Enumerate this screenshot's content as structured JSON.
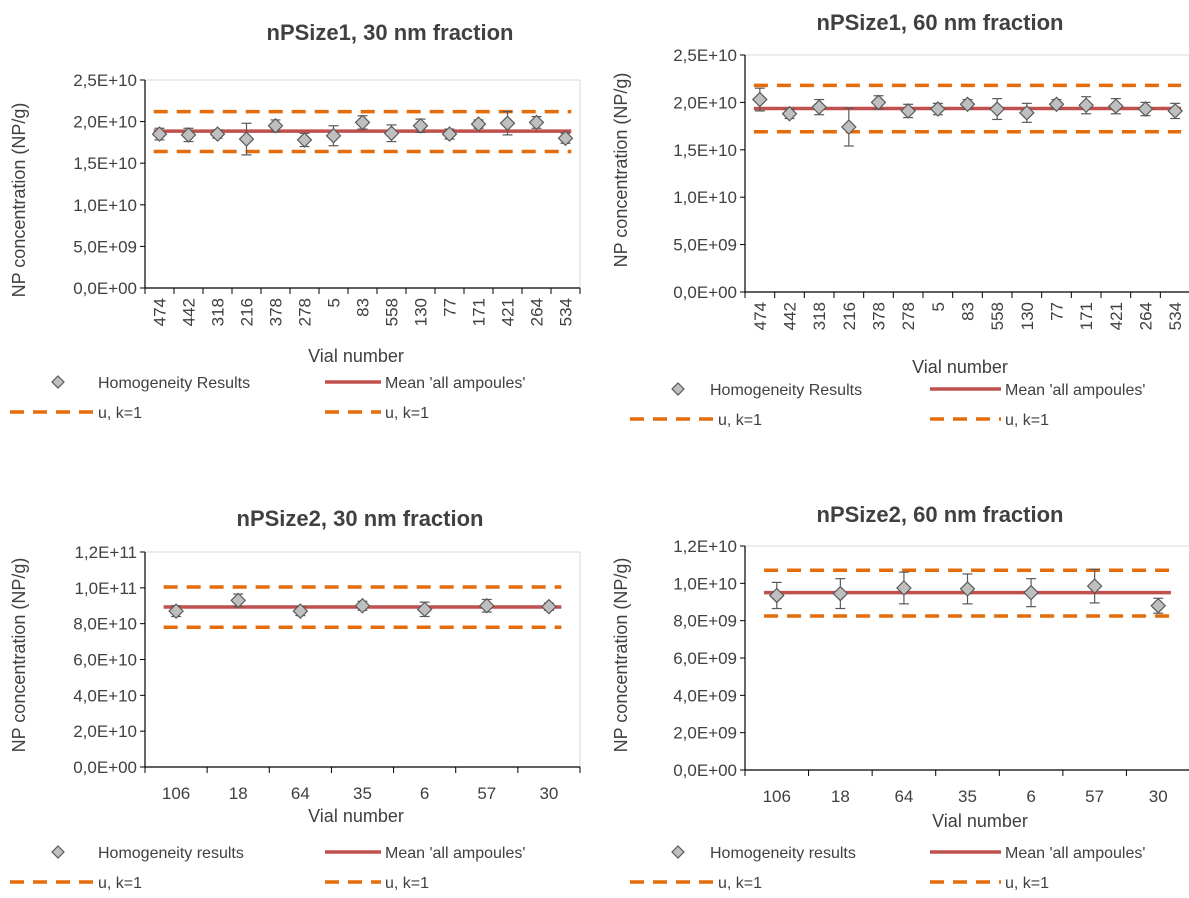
{
  "chart_data": [
    {
      "type": "scatter",
      "title": "nPSize1, 30 nm fraction",
      "xlabel": "Vial number",
      "ylabel": "NP concentration (NP/g)",
      "ylim": [
        0,
        25000000000
      ],
      "y_ticks": [
        "0,0E+00",
        "5,0E+09",
        "1,0E+10",
        "1,5E+10",
        "2,0E+10",
        "2,5E+10"
      ],
      "x_tick_rotation": "vertical",
      "categories": [
        "474",
        "442",
        "318",
        "216",
        "378",
        "278",
        "5",
        "83",
        "558",
        "130",
        "77",
        "171",
        "421",
        "264",
        "534"
      ],
      "series": [
        {
          "name": "Homogeneity Results",
          "kind": "points-with-error",
          "values": [
            18500000000,
            18400000000,
            18500000000,
            17900000000,
            19500000000,
            17800000000,
            18300000000,
            19900000000,
            18600000000,
            19500000000,
            18500000000,
            19700000000,
            19800000000,
            19900000000,
            18000000000
          ],
          "errors": [
            700000000,
            800000000,
            500000000,
            1900000000,
            700000000,
            800000000,
            1200000000,
            800000000,
            1000000000,
            800000000,
            600000000,
            500000000,
            1400000000,
            700000000,
            600000000
          ]
        },
        {
          "name": "Mean 'all ampoules'",
          "kind": "mean-line",
          "value": 18850000000
        },
        {
          "name": "u, k=1",
          "kind": "dashed-line",
          "value": 21200000000
        },
        {
          "name": "u, k=1",
          "kind": "dashed-line",
          "value": 16400000000
        }
      ],
      "grid": false,
      "legend_position": "bottom"
    },
    {
      "type": "scatter",
      "title": "nPSize1, 60 nm fraction",
      "xlabel": "Vial number",
      "ylabel": "NP concentration (NP/g)",
      "ylim": [
        0,
        25000000000
      ],
      "y_ticks": [
        "0,0E+00",
        "5,0E+09",
        "1,0E+10",
        "1,5E+10",
        "2,0E+10",
        "2,5E+10"
      ],
      "x_tick_rotation": "vertical",
      "categories": [
        "474",
        "442",
        "318",
        "216",
        "378",
        "278",
        "5",
        "83",
        "558",
        "130",
        "77",
        "171",
        "421",
        "264",
        "534"
      ],
      "series": [
        {
          "name": "Homogeneity Results",
          "kind": "points-with-error",
          "values": [
            20300000000,
            18800000000,
            19500000000,
            17400000000,
            20000000000,
            19100000000,
            19300000000,
            19800000000,
            19300000000,
            18900000000,
            19800000000,
            19700000000,
            19600000000,
            19300000000,
            19100000000
          ],
          "errors": [
            1200000000,
            500000000,
            800000000,
            2000000000,
            700000000,
            700000000,
            600000000,
            500000000,
            1100000000,
            1000000000,
            500000000,
            900000000,
            800000000,
            700000000,
            800000000
          ]
        },
        {
          "name": "Mean 'all ampoules'",
          "kind": "mean-line",
          "value": 19350000000
        },
        {
          "name": "u, k=1",
          "kind": "dashed-line",
          "value": 21800000000
        },
        {
          "name": "u, k=1",
          "kind": "dashed-line",
          "value": 16900000000
        }
      ],
      "grid": false,
      "legend_position": "bottom"
    },
    {
      "type": "scatter",
      "title": "nPSize2, 30 nm fraction",
      "xlabel": "Vial number",
      "ylabel": "NP concentration (NP/g)",
      "ylim": [
        0,
        120000000000
      ],
      "y_ticks": [
        "0,0E+00",
        "2,0E+10",
        "4,0E+10",
        "6,0E+10",
        "8,0E+10",
        "1,0E+11",
        "1,2E+11"
      ],
      "x_tick_rotation": "horizontal",
      "categories": [
        "106",
        "18",
        "64",
        "35",
        "6",
        "57",
        "30"
      ],
      "series": [
        {
          "name": "Homogeneity results",
          "kind": "points-with-error",
          "values": [
            87000000000,
            93000000000,
            87000000000,
            90000000000,
            88000000000,
            90000000000,
            89500000000
          ],
          "errors": [
            3000000000,
            3500000000,
            2500000000,
            2500000000,
            4000000000,
            3500000000,
            2000000000
          ]
        },
        {
          "name": "Mean 'all ampoules'",
          "kind": "mean-line",
          "value": 89300000000
        },
        {
          "name": "u, k=1",
          "kind": "dashed-line",
          "value": 100500000000
        },
        {
          "name": "u, k=1",
          "kind": "dashed-line",
          "value": 78000000000
        }
      ],
      "grid": false,
      "legend_position": "bottom"
    },
    {
      "type": "scatter",
      "title": "nPSize2, 60 nm fraction",
      "xlabel": "Vial number",
      "ylabel": "NP concentration (NP/g)",
      "ylim": [
        0,
        12000000000
      ],
      "y_ticks": [
        "0,0E+00",
        "2,0E+09",
        "4,0E+09",
        "6,0E+09",
        "8,0E+09",
        "1,0E+10",
        "1,2E+10"
      ],
      "x_tick_rotation": "horizontal",
      "categories": [
        "106",
        "18",
        "64",
        "35",
        "6",
        "57",
        "30"
      ],
      "series": [
        {
          "name": "Homogeneity results",
          "kind": "points-with-error",
          "values": [
            9350000000,
            9450000000,
            9750000000,
            9700000000,
            9500000000,
            9850000000,
            8800000000
          ],
          "errors": [
            700000000,
            800000000,
            850000000,
            800000000,
            750000000,
            900000000,
            400000000
          ]
        },
        {
          "name": "Mean 'all ampoules'",
          "kind": "mean-line",
          "value": 9500000000
        },
        {
          "name": "u, k=1",
          "kind": "dashed-line",
          "value": 10700000000
        },
        {
          "name": "u, k=1",
          "kind": "dashed-line",
          "value": 8250000000
        }
      ],
      "grid": false,
      "legend_position": "bottom"
    }
  ],
  "colors": {
    "mean_line": "#c0504d",
    "u_line": "#e46c0a",
    "marker_fill": "#bfbfbf",
    "marker_stroke": "#595959",
    "text": "#404040",
    "axis": "#000000"
  }
}
